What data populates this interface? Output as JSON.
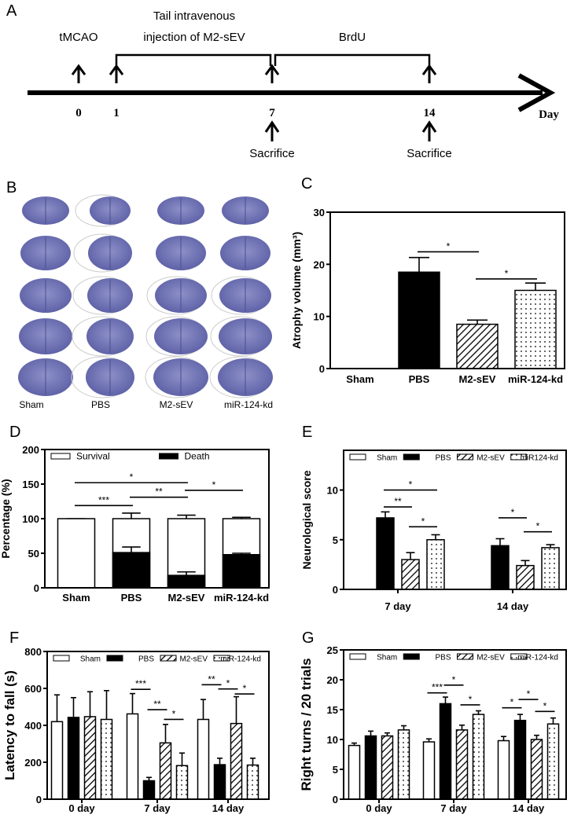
{
  "panel_a": {
    "label": "A",
    "event_tmcao": "tMCAO",
    "bracket1_line1": "Tail intravenous",
    "bracket1_line2": "injection of M2-sEV",
    "bracket2": "BrdU",
    "ticks": [
      "0",
      "1",
      "7",
      "14"
    ],
    "axis_label": "Day",
    "sacrifice": "Sacrifice"
  },
  "panel_b": {
    "label": "B",
    "columns": [
      "Sham",
      "PBS",
      "M2-sEV",
      "miR-124-kd"
    ],
    "rows": 5
  },
  "colors": {
    "ink": "#000000",
    "brain_stain": "#6b6fb0",
    "background": "#ffffff"
  },
  "chart_data": [
    {
      "panel": "C",
      "type": "bar",
      "categories": [
        "Sham",
        "PBS",
        "M2-sEV",
        "miR-124-kd"
      ],
      "values": [
        0,
        18.5,
        8.5,
        15.0
      ],
      "error_upper": [
        0,
        21.3,
        9.3,
        16.4
      ],
      "fills": [
        "white",
        "black",
        "hatch",
        "dots"
      ],
      "ylabel": "Atrophy volume (mm³)",
      "ylim": [
        0,
        30
      ],
      "yticks": [
        0,
        10,
        20,
        30
      ],
      "significance": [
        {
          "from": 1,
          "to": 2,
          "y": 22.4,
          "label": "*"
        },
        {
          "from": 2,
          "to": 3,
          "y": 17.2,
          "label": "*"
        }
      ]
    },
    {
      "panel": "D",
      "type": "stacked-bar",
      "categories": [
        "Sham",
        "PBS",
        "M2-sEV",
        "miR-124-kd"
      ],
      "series": [
        {
          "name": "Survival",
          "fill": "white",
          "values": [
            100,
            100,
            100,
            100
          ],
          "error_upper": [
            100,
            108,
            105,
            102
          ]
        },
        {
          "name": "Death",
          "fill": "black",
          "values": [
            0,
            51,
            18,
            48
          ],
          "error_upper": [
            0,
            59,
            23,
            50
          ]
        }
      ],
      "ylabel": "Percentage (%)",
      "ylim": [
        0,
        200
      ],
      "yticks": [
        0,
        50,
        100,
        150,
        200
      ],
      "legend": "top-left",
      "significance": [
        {
          "from": 0,
          "to": 1,
          "y": 119,
          "label": "***"
        },
        {
          "from": 1,
          "to": 2,
          "y": 131,
          "label": "**"
        },
        {
          "from": 0,
          "to": 2,
          "y": 152,
          "label": "*"
        },
        {
          "from": 2,
          "to": 3,
          "y": 141,
          "label": "*"
        }
      ]
    },
    {
      "panel": "E",
      "type": "grouped-bar",
      "categories": [
        "7 day",
        "14 day"
      ],
      "series": [
        {
          "name": "Sham",
          "fill": "white",
          "values": [
            0,
            0
          ],
          "error_upper": [
            0,
            0
          ]
        },
        {
          "name": "PBS",
          "fill": "black",
          "values": [
            7.2,
            4.4
          ],
          "error_upper": [
            7.8,
            5.1
          ]
        },
        {
          "name": "M2-sEV",
          "fill": "hatch",
          "values": [
            3.0,
            2.4
          ],
          "error_upper": [
            3.7,
            2.9
          ]
        },
        {
          "name": "miR124-kd",
          "fill": "dots",
          "values": [
            5.0,
            4.2
          ],
          "error_upper": [
            5.5,
            4.5
          ]
        }
      ],
      "ylabel": "Neurological score",
      "ylim": [
        0,
        14
      ],
      "yticks": [
        0,
        5,
        10
      ],
      "legend": "top",
      "significance": [
        {
          "group": 0,
          "from": 1,
          "to": 2,
          "y": 8.3,
          "label": "**"
        },
        {
          "group": 0,
          "from": 1,
          "to": 3,
          "y": 10.0,
          "label": "*"
        },
        {
          "group": 0,
          "from": 2,
          "to": 3,
          "y": 6.3,
          "label": "*"
        },
        {
          "group": 1,
          "from": 1,
          "to": 2,
          "y": 7.2,
          "label": "*"
        },
        {
          "group": 1,
          "from": 2,
          "to": 3,
          "y": 5.8,
          "label": "*"
        }
      ]
    },
    {
      "panel": "F",
      "type": "grouped-bar",
      "categories": [
        "0 day",
        "7 day",
        "14 day"
      ],
      "series": [
        {
          "name": "Sham",
          "fill": "white",
          "values": [
            420,
            462,
            432
          ],
          "error_upper": [
            565,
            572,
            540
          ]
        },
        {
          "name": "PBS",
          "fill": "black",
          "values": [
            443,
            100,
            187
          ],
          "error_upper": [
            550,
            118,
            222
          ]
        },
        {
          "name": "M2-sEV",
          "fill": "hatch",
          "values": [
            447,
            305,
            410
          ],
          "error_upper": [
            582,
            405,
            555
          ]
        },
        {
          "name": "miR-124-kd",
          "fill": "dots",
          "values": [
            432,
            182,
            185
          ],
          "error_upper": [
            588,
            250,
            222
          ]
        }
      ],
      "ylabel": "Latency to fall (s)",
      "ylim": [
        0,
        800
      ],
      "yticks": [
        0,
        200,
        400,
        600,
        800
      ],
      "legend": "top",
      "significance": [
        {
          "group": 1,
          "from": 0,
          "to": 1,
          "y": 595,
          "label": "***"
        },
        {
          "group": 1,
          "from": 1,
          "to": 2,
          "y": 485,
          "label": "**"
        },
        {
          "group": 1,
          "from": 2,
          "to": 3,
          "y": 432,
          "label": "*"
        },
        {
          "group": 2,
          "from": 0,
          "to": 1,
          "y": 620,
          "label": "**"
        },
        {
          "group": 2,
          "from": 1,
          "to": 2,
          "y": 597,
          "label": "*"
        },
        {
          "group": 2,
          "from": 2,
          "to": 3,
          "y": 570,
          "label": "*"
        }
      ]
    },
    {
      "panel": "G",
      "type": "grouped-bar",
      "categories": [
        "0 day",
        "7 day",
        "14 day"
      ],
      "series": [
        {
          "name": "Sham",
          "fill": "white",
          "values": [
            9.0,
            9.6,
            9.8
          ],
          "error_upper": [
            9.4,
            10.1,
            10.5
          ]
        },
        {
          "name": "PBS",
          "fill": "black",
          "values": [
            10.6,
            16.0,
            13.2
          ],
          "error_upper": [
            11.4,
            17.1,
            14.2
          ]
        },
        {
          "name": "M2-sEV",
          "fill": "hatch",
          "values": [
            10.6,
            11.6,
            10.0
          ],
          "error_upper": [
            11.1,
            12.4,
            10.7
          ]
        },
        {
          "name": "miR-124-kd",
          "fill": "dots",
          "values": [
            11.6,
            14.2,
            12.6
          ],
          "error_upper": [
            12.3,
            14.8,
            13.6
          ]
        }
      ],
      "ylabel": "Right turns / 20 trials",
      "ylim": [
        0,
        25
      ],
      "yticks": [
        0,
        5,
        10,
        15,
        20,
        25
      ],
      "legend": "top",
      "significance": [
        {
          "group": 1,
          "from": 0,
          "to": 1,
          "y": 17.8,
          "label": "***"
        },
        {
          "group": 1,
          "from": 1,
          "to": 2,
          "y": 19.1,
          "label": "*"
        },
        {
          "group": 1,
          "from": 2,
          "to": 3,
          "y": 15.8,
          "label": "*"
        },
        {
          "group": 2,
          "from": 0,
          "to": 1,
          "y": 15.3,
          "label": "*"
        },
        {
          "group": 2,
          "from": 1,
          "to": 2,
          "y": 16.7,
          "label": "*"
        },
        {
          "group": 2,
          "from": 2,
          "to": 3,
          "y": 14.7,
          "label": "*"
        }
      ]
    }
  ]
}
